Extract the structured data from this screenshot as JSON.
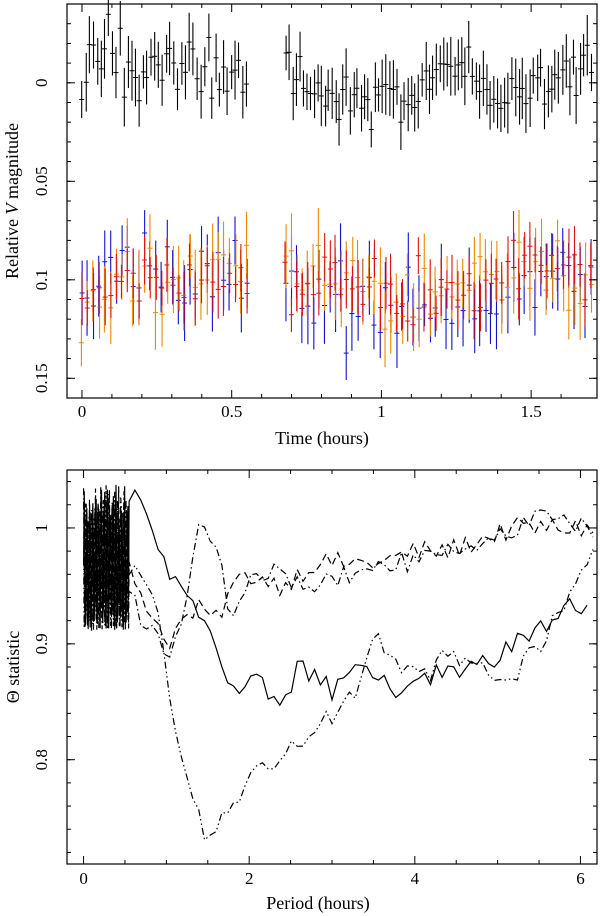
{
  "chart_data": [
    {
      "type": "scatter",
      "title": "",
      "xlabel": "Time (hours)",
      "ylabel_parts": [
        "Relative ",
        "V",
        " magnitude"
      ],
      "xlim": [
        -0.05,
        1.72
      ],
      "ylim": [
        0.16,
        -0.04
      ],
      "y_inverted": true,
      "x_ticks": [
        0,
        0.5,
        1,
        1.5
      ],
      "x_tick_labels": [
        "0",
        "0.5",
        "1",
        "1.5"
      ],
      "y_ticks": [
        0,
        0.05,
        0.1,
        0.15
      ],
      "y_tick_labels": [
        "0",
        "0.05",
        "0.1",
        "0.15"
      ],
      "error_bars": true,
      "series": [
        {
          "color": "#000000",
          "segments": [
            {
              "x_start": 0.0,
              "x_end": 0.55,
              "n": 44,
              "mean": -0.005,
              "amp": 0.012,
              "noise": 0.012,
              "err": 0.012
            },
            {
              "x_start": 0.68,
              "x_end": 1.7,
              "n": 86,
              "mean": 0.003,
              "amp": 0.012,
              "noise": 0.011,
              "err": 0.012
            }
          ],
          "x": [
            0.0,
            0.05,
            0.1,
            0.15,
            0.2,
            0.25,
            0.3,
            0.35,
            0.4,
            0.45,
            0.5,
            0.55,
            0.7,
            0.8,
            0.9,
            1.0,
            1.1,
            1.2,
            1.3,
            1.4,
            1.5,
            1.6,
            1.7
          ],
          "y": [
            0.005,
            -0.008,
            -0.018,
            -0.01,
            0.0,
            -0.02,
            -0.012,
            -0.01,
            -0.008,
            0.0,
            -0.005,
            -0.002,
            -0.01,
            0.005,
            0.01,
            0.01,
            0.012,
            0.0,
            -0.02,
            0.02,
            0.0,
            0.0,
            -0.01
          ]
        },
        {
          "color": "#1010d0",
          "segments": [
            {
              "x_start": 0.0,
              "x_end": 0.55,
              "n": 30,
              "mean": 0.1,
              "amp": 0.01,
              "noise": 0.014,
              "err": 0.015
            },
            {
              "x_start": 0.68,
              "x_end": 1.7,
              "n": 56,
              "mean": 0.107,
              "amp": 0.012,
              "noise": 0.015,
              "err": 0.015
            }
          ],
          "x": [
            0.0,
            0.1,
            0.2,
            0.3,
            0.4,
            0.5,
            0.7,
            0.8,
            0.9,
            1.0,
            1.1,
            1.2,
            1.3,
            1.4,
            1.5,
            1.6,
            1.7
          ],
          "y": [
            0.1,
            0.095,
            0.105,
            0.1,
            0.1,
            0.09,
            0.1,
            0.105,
            0.11,
            0.11,
            0.12,
            0.12,
            0.115,
            0.11,
            0.1,
            0.1,
            0.09
          ]
        },
        {
          "color": "#ee8800",
          "segments": [
            {
              "x_start": 0.0,
              "x_end": 0.55,
              "n": 30,
              "mean": 0.1,
              "amp": 0.01,
              "noise": 0.013,
              "err": 0.015
            },
            {
              "x_start": 0.68,
              "x_end": 1.7,
              "n": 56,
              "mean": 0.103,
              "amp": 0.012,
              "noise": 0.014,
              "err": 0.015
            }
          ],
          "x": [
            0.0,
            0.1,
            0.2,
            0.3,
            0.4,
            0.5,
            0.7,
            0.8,
            0.9,
            1.0,
            1.1,
            1.2,
            1.3,
            1.4,
            1.5,
            1.6,
            1.7
          ],
          "y": [
            0.12,
            0.1,
            0.095,
            0.1,
            0.09,
            0.085,
            0.09,
            0.1,
            0.1,
            0.105,
            0.11,
            0.11,
            0.105,
            0.1,
            0.09,
            0.1,
            0.1
          ]
        },
        {
          "color": "#dd1111",
          "segments": [
            {
              "x_start": 0.0,
              "x_end": 0.55,
              "n": 30,
              "mean": 0.104,
              "amp": 0.008,
              "noise": 0.01,
              "err": 0.012
            },
            {
              "x_start": 0.68,
              "x_end": 1.7,
              "n": 56,
              "mean": 0.104,
              "amp": 0.01,
              "noise": 0.011,
              "err": 0.012
            }
          ],
          "x": [
            0.0,
            0.1,
            0.2,
            0.3,
            0.4,
            0.5,
            0.7,
            0.8,
            0.9,
            1.0,
            1.1,
            1.2,
            1.3,
            1.4,
            1.5,
            1.6,
            1.7
          ],
          "y": [
            0.11,
            0.105,
            0.1,
            0.1,
            0.1,
            0.1,
            0.1,
            0.105,
            0.1,
            0.105,
            0.11,
            0.105,
            0.1,
            0.1,
            0.08,
            0.095,
            0.1
          ]
        }
      ]
    },
    {
      "type": "line",
      "title": "",
      "xlabel": "Period (hours)",
      "ylabel_symbol": "Θ",
      "ylabel_text": " statistic",
      "xlim": [
        -0.2,
        6.2
      ],
      "ylim": [
        0.71,
        1.05
      ],
      "x_ticks": [
        0,
        2,
        4,
        6
      ],
      "x_tick_labels": [
        "0",
        "2",
        "4",
        "6"
      ],
      "y_ticks": [
        0.8,
        0.9,
        1.0
      ],
      "y_tick_labels": [
        "0.8",
        "0.9",
        "1"
      ],
      "low_period_oscillation": {
        "x_start": 0.0,
        "x_end": 0.55,
        "y_low": 0.9,
        "y_high": 1.04
      },
      "series": [
        {
          "dash": "solid",
          "x": [
            0.0,
            0.3,
            0.6,
            0.8,
            1.0,
            1.2,
            1.4,
            1.6,
            1.8,
            2.0,
            2.2,
            2.4,
            2.6,
            2.8,
            3.0,
            3.2,
            3.4,
            3.6,
            3.8,
            4.0,
            4.2,
            4.4,
            4.6,
            4.8,
            5.0,
            5.2,
            5.4,
            5.6,
            5.8,
            6.0,
            6.1
          ],
          "y": [
            0.99,
            1.02,
            1.03,
            1.0,
            0.97,
            0.94,
            0.93,
            0.9,
            0.86,
            0.87,
            0.86,
            0.85,
            0.88,
            0.87,
            0.86,
            0.87,
            0.88,
            0.87,
            0.86,
            0.86,
            0.87,
            0.88,
            0.88,
            0.88,
            0.89,
            0.9,
            0.91,
            0.92,
            0.93,
            0.93,
            0.93
          ]
        },
        {
          "dash": "dashed",
          "x": [
            0.0,
            0.2,
            0.5,
            0.8,
            1.0,
            1.2,
            1.4,
            1.6,
            1.8,
            2.0,
            2.4,
            2.8,
            3.2,
            3.6,
            4.0,
            4.4,
            4.8,
            5.2,
            5.6,
            6.0,
            6.2
          ],
          "y": [
            0.98,
            1.0,
            0.97,
            0.93,
            0.9,
            0.92,
            0.93,
            0.92,
            0.95,
            0.96,
            0.95,
            0.97,
            0.97,
            0.97,
            0.98,
            0.98,
            0.99,
            1.0,
            1.0,
            1.0,
            1.0
          ]
        },
        {
          "dash": "dash-dot",
          "x": [
            0.0,
            0.2,
            0.5,
            0.8,
            1.0,
            1.2,
            1.4,
            1.6,
            1.8,
            2.0,
            2.4,
            2.8,
            3.2,
            3.6,
            4.0,
            4.4,
            4.8,
            5.2,
            5.6,
            6.0,
            6.2
          ],
          "y": [
            0.97,
            0.99,
            0.95,
            0.91,
            0.89,
            0.92,
            1.0,
            0.98,
            0.92,
            0.96,
            0.96,
            0.95,
            0.96,
            0.97,
            0.97,
            0.98,
            0.99,
            1.0,
            1.01,
            1.0,
            1.0
          ]
        },
        {
          "dash": "dash-dot-dot",
          "x": [
            0.0,
            0.1,
            0.3,
            0.6,
            0.9,
            1.1,
            1.3,
            1.5,
            1.8,
            2.1,
            2.4,
            2.7,
            3.0,
            3.3,
            3.5,
            3.8,
            4.1,
            4.4,
            4.7,
            5.0,
            5.2,
            5.5,
            5.8,
            6.1,
            6.2
          ],
          "y": [
            0.98,
            0.86,
            0.93,
            0.97,
            0.93,
            0.83,
            0.77,
            0.73,
            0.76,
            0.79,
            0.8,
            0.82,
            0.84,
            0.86,
            0.91,
            0.88,
            0.87,
            0.89,
            0.88,
            0.87,
            0.87,
            0.9,
            0.93,
            0.97,
            0.98
          ]
        }
      ]
    }
  ]
}
